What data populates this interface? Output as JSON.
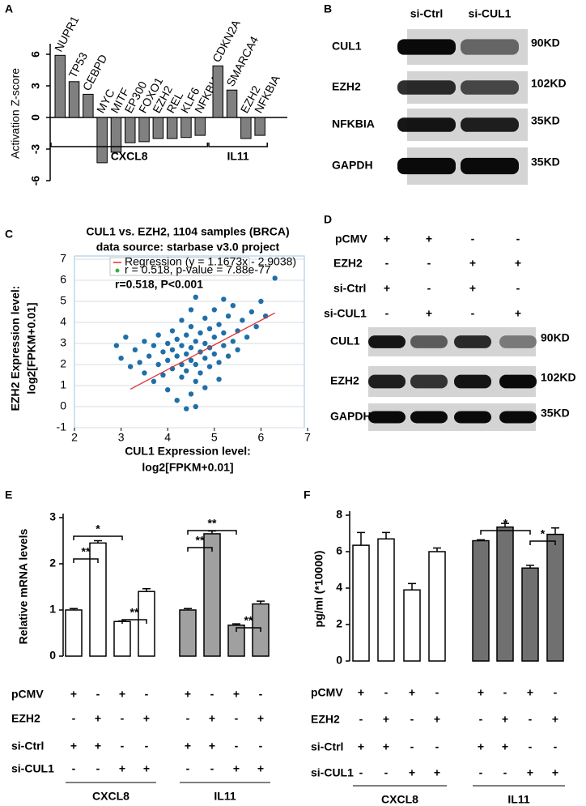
{
  "chart_data": [
    {
      "panel": "A",
      "type": "bar",
      "ylabel": "Activation Z-score",
      "ylim": [
        -6,
        7
      ],
      "yticks": [
        -6,
        -3,
        0,
        3,
        6
      ],
      "color": "#808080",
      "groups": [
        {
          "name": "CXCL8",
          "categories": [
            "NUPR1",
            "TP53",
            "CEBPD",
            "MYC",
            "MITF",
            "EP300",
            "FOXO1",
            "EZH2",
            "REL",
            "KLF6",
            "NFKBIA"
          ],
          "values": [
            5.9,
            3.4,
            2.2,
            -4.3,
            -3.3,
            -2.4,
            -2.3,
            -2.0,
            -2.0,
            -1.9,
            -1.7
          ],
          "label_colors": [
            "#000000",
            "#000000",
            "#000000",
            "#000000",
            "#000000",
            "#000000",
            "#000000",
            "#3a7a1a",
            "#000000",
            "#000000",
            "#e02020"
          ]
        },
        {
          "name": "IL11",
          "categories": [
            "CDKN2A",
            "SMARCA4",
            "EZH2",
            "NFKBIA"
          ],
          "values": [
            4.9,
            2.6,
            -2.0,
            -1.7
          ],
          "label_colors": [
            "#000000",
            "#000000",
            "#3a7a1a",
            "#e02020"
          ]
        }
      ]
    },
    {
      "panel": "C",
      "type": "scatter",
      "title": [
        "CUL1 vs. EZH2, 1104 samples (BRCA)",
        "data source: starbase v3.0 project"
      ],
      "xlabel": [
        "CUL1 Expression level:",
        "log2[FPKM+0.01]"
      ],
      "ylabel": [
        "EZH2 Expression level:",
        "log2[FPKM+0.01]"
      ],
      "xlim": [
        2,
        7
      ],
      "ylim": [
        -1,
        7
      ],
      "xticks": [
        2,
        3,
        4,
        5,
        6,
        7
      ],
      "yticks": [
        -1,
        0,
        1,
        2,
        3,
        4,
        5,
        6,
        7
      ],
      "grid": true,
      "color": "#1f6fa8",
      "x": [
        3.0,
        3.2,
        3.3,
        3.4,
        3.5,
        3.5,
        3.6,
        3.7,
        3.7,
        3.8,
        3.8,
        3.9,
        3.9,
        4.0,
        4.0,
        4.0,
        4.1,
        4.1,
        4.1,
        4.2,
        4.2,
        4.2,
        4.3,
        4.3,
        4.3,
        4.3,
        4.4,
        4.4,
        4.4,
        4.4,
        4.5,
        4.5,
        4.5,
        4.5,
        4.5,
        4.6,
        4.6,
        4.6,
        4.6,
        4.7,
        4.7,
        4.7,
        4.8,
        4.8,
        4.8,
        4.8,
        4.9,
        4.9,
        4.9,
        5.0,
        5.0,
        5.0,
        5.1,
        5.1,
        5.1,
        5.2,
        5.2,
        5.3,
        5.3,
        5.4,
        5.4,
        5.5,
        5.5,
        5.6,
        5.7,
        5.8,
        5.9,
        6.0,
        6.1,
        6.3,
        2.9,
        3.1,
        4.6,
        5.2
      ],
      "y": [
        2.3,
        1.9,
        2.7,
        2.1,
        1.6,
        3.1,
        2.4,
        1.2,
        2.9,
        2.0,
        3.4,
        1.5,
        2.6,
        0.8,
        2.2,
        3.0,
        1.8,
        2.7,
        3.6,
        0.3,
        2.4,
        3.2,
        1.4,
        2.0,
        2.9,
        4.1,
        -0.1,
        1.7,
        2.5,
        3.4,
        0.6,
        2.2,
        2.8,
        3.8,
        4.6,
        1.2,
        2.0,
        3.1,
        0.0,
        2.6,
        3.5,
        1.6,
        2.3,
        3.0,
        4.2,
        0.9,
        2.8,
        3.7,
        1.9,
        2.5,
        3.3,
        4.6,
        2.1,
        3.9,
        1.3,
        2.9,
        3.5,
        4.3,
        2.4,
        3.1,
        4.8,
        3.6,
        2.7,
        4.1,
        3.3,
        4.5,
        3.8,
        5.0,
        4.3,
        6.1,
        2.9,
        3.3,
        5.2,
        5.1
      ],
      "regression": {
        "name": "Regression (y = 1.1673x - 2.9038)",
        "color": "#e03030",
        "x": [
          3.2,
          6.3
        ],
        "y": [
          0.83,
          4.45
        ]
      },
      "stat": "r = 0.518, p-value = 7.88e-77",
      "stat_color": "#3cb043",
      "annotation": "r=0.518, P<0.001"
    },
    {
      "panel": "E",
      "type": "bar",
      "ylabel": "Relative mRNA levels",
      "ylim": [
        0,
        3
      ],
      "yticks": [
        0,
        1,
        2,
        3
      ],
      "series": [
        {
          "name": "CXCL8",
          "color": "#ffffff",
          "values": [
            1.0,
            2.45,
            0.75,
            1.4
          ],
          "errors": [
            0.03,
            0.05,
            0.01,
            0.06
          ]
        },
        {
          "name": "IL11",
          "color": "#a0a0a0",
          "values": [
            1.0,
            2.65,
            0.67,
            1.13
          ],
          "errors": [
            0.03,
            0.06,
            0.03,
            0.06
          ]
        }
      ],
      "annotations": [
        "**",
        "*",
        "**",
        "**",
        "**",
        "**"
      ],
      "conditions": [
        {
          "name": "pCMV",
          "marks": [
            "+",
            "-",
            "+",
            "-",
            "+",
            "-",
            "+",
            "-"
          ]
        },
        {
          "name": "EZH2",
          "marks": [
            "-",
            "+",
            "-",
            "+",
            "-",
            "+",
            "-",
            "+"
          ]
        },
        {
          "name": "si-Ctrl",
          "marks": [
            "+",
            "+",
            "-",
            "-",
            "+",
            "+",
            "-",
            "-"
          ]
        },
        {
          "name": "si-CUL1",
          "marks": [
            "-",
            "-",
            "+",
            "+",
            "-",
            "-",
            "+",
            "+"
          ]
        }
      ]
    },
    {
      "panel": "F",
      "type": "bar",
      "ylabel": "pg/ml (*10000)",
      "ylim": [
        0,
        8
      ],
      "yticks": [
        0,
        2,
        4,
        6,
        8
      ],
      "series": [
        {
          "name": "CXCL8",
          "color": "#ffffff",
          "values": [
            6.35,
            6.7,
            3.9,
            6.0
          ],
          "errors": [
            0.7,
            0.35,
            0.35,
            0.2
          ]
        },
        {
          "name": "IL11",
          "color": "#707070",
          "values": [
            6.6,
            7.35,
            5.1,
            6.95
          ],
          "errors": [
            0.05,
            0.2,
            0.15,
            0.35
          ]
        }
      ],
      "annotations": [
        "*",
        "*"
      ],
      "conditions": [
        {
          "name": "pCMV",
          "marks": [
            "+",
            "-",
            "+",
            "-",
            "+",
            "-",
            "+",
            "-"
          ]
        },
        {
          "name": "EZH2",
          "marks": [
            "-",
            "+",
            "-",
            "+",
            "-",
            "+",
            "-",
            "+"
          ]
        },
        {
          "name": "si-Ctrl",
          "marks": [
            "+",
            "+",
            "-",
            "-",
            "+",
            "+",
            "-",
            "-"
          ]
        },
        {
          "name": "si-CUL1",
          "marks": [
            "-",
            "-",
            "+",
            "+",
            "-",
            "-",
            "+",
            "+"
          ]
        }
      ]
    }
  ],
  "blots": [
    {
      "panel": "B",
      "columns": [
        "si-Ctrl",
        "si-CUL1"
      ],
      "rows": [
        {
          "name": "CUL1",
          "size": "90KD"
        },
        {
          "name": "EZH2",
          "size": "102KD"
        },
        {
          "name": "NFKBIA",
          "size": "35KD"
        },
        {
          "name": "GAPDH",
          "size": "35KD"
        }
      ]
    },
    {
      "panel": "D",
      "conditions": [
        {
          "name": "pCMV",
          "marks": [
            "+",
            "+",
            "-",
            "-"
          ]
        },
        {
          "name": "EZH2",
          "marks": [
            "-",
            "-",
            "+",
            "+"
          ]
        },
        {
          "name": "si-Ctrl",
          "marks": [
            "+",
            "-",
            "+",
            "-"
          ]
        },
        {
          "name": "si-CUL1",
          "marks": [
            "-",
            "+",
            "-",
            "+"
          ]
        }
      ],
      "rows": [
        {
          "name": "CUL1",
          "size": "90KD"
        },
        {
          "name": "EZH2",
          "size": "102KD"
        },
        {
          "name": "GAPDH",
          "size": "35KD"
        }
      ]
    }
  ]
}
